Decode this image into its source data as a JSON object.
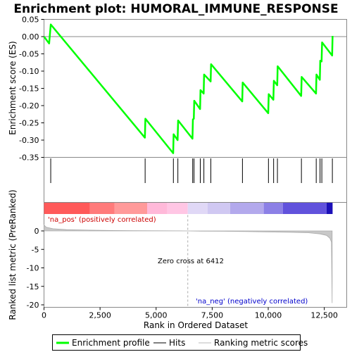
{
  "chart_data": {
    "type": "line",
    "title": "Enrichment plot: HUMORAL_IMMUNE_RESPONSE",
    "es_panel": {
      "ylabel": "Enrichment score (ES)",
      "ylim": [
        -0.35,
        0.05
      ],
      "yticks": [
        "0.05",
        "0.00",
        "-0.05",
        "-0.10",
        "-0.15",
        "-0.20",
        "-0.25",
        "-0.30",
        "-0.35"
      ],
      "ytick_values": [
        0.05,
        0.0,
        -0.05,
        -0.1,
        -0.15,
        -0.2,
        -0.25,
        -0.3,
        -0.35
      ],
      "series_color": "#00ff00",
      "points": [
        [
          0,
          0.0
        ],
        [
          230,
          -0.02
        ],
        [
          300,
          0.035
        ],
        [
          4500,
          -0.293
        ],
        [
          4520,
          -0.238
        ],
        [
          5760,
          -0.338
        ],
        [
          5780,
          -0.283
        ],
        [
          5960,
          -0.3
        ],
        [
          5980,
          -0.243
        ],
        [
          6620,
          -0.296
        ],
        [
          6640,
          -0.24
        ],
        [
          6680,
          -0.238
        ],
        [
          6700,
          -0.186
        ],
        [
          6960,
          -0.21
        ],
        [
          6980,
          -0.155
        ],
        [
          7120,
          -0.165
        ],
        [
          7140,
          -0.11
        ],
        [
          7430,
          -0.13
        ],
        [
          7450,
          -0.08
        ],
        [
          8840,
          -0.188
        ],
        [
          8860,
          -0.133
        ],
        [
          10000,
          -0.222
        ],
        [
          10020,
          -0.167
        ],
        [
          10230,
          -0.183
        ],
        [
          10250,
          -0.128
        ],
        [
          10400,
          -0.141
        ],
        [
          10420,
          -0.086
        ],
        [
          11470,
          -0.172
        ],
        [
          11490,
          -0.117
        ],
        [
          12130,
          -0.165
        ],
        [
          12150,
          -0.11
        ],
        [
          12300,
          -0.125
        ],
        [
          12320,
          -0.07
        ],
        [
          12380,
          -0.072
        ],
        [
          12400,
          -0.017
        ],
        [
          12850,
          -0.055
        ],
        [
          12870,
          0.002
        ]
      ]
    },
    "hits": [
      300,
      4510,
      5770,
      5970,
      6630,
      6690,
      6970,
      7130,
      7440,
      8850,
      10010,
      10240,
      10410,
      11480,
      12140,
      12310,
      12390,
      12860
    ],
    "gradient_bar": {
      "segments": [
        {
          "from": 0,
          "to": 2050,
          "color": "#ff5a5a"
        },
        {
          "from": 2050,
          "to": 3150,
          "color": "#ff7b7b"
        },
        {
          "from": 3150,
          "to": 4600,
          "color": "#ff9a9a"
        },
        {
          "from": 4600,
          "to": 5500,
          "color": "#ffb9d9"
        },
        {
          "from": 5500,
          "to": 6412,
          "color": "#ffc6e4"
        },
        {
          "from": 6412,
          "to": 7300,
          "color": "#e0d8f6"
        },
        {
          "from": 7300,
          "to": 8300,
          "color": "#d0c8f2"
        },
        {
          "from": 8300,
          "to": 9800,
          "color": "#b3a9ec"
        },
        {
          "from": 9800,
          "to": 10650,
          "color": "#8c80e6"
        },
        {
          "from": 10650,
          "to": 12600,
          "color": "#6152dc"
        },
        {
          "from": 12600,
          "to": 12870,
          "color": "#1c10b8"
        }
      ]
    },
    "metric_panel": {
      "ylabel": "Ranked list metric (PreRanked)",
      "xlabel": "Rank in Ordered Dataset",
      "ylim": [
        -20,
        0
      ],
      "yticks": [
        "0",
        "-5",
        "-10",
        "-15",
        "-20"
      ],
      "ytick_values": [
        0,
        -5,
        -10,
        -15,
        -20
      ],
      "metric_points": [
        [
          0,
          1.6
        ],
        [
          100,
          1.0
        ],
        [
          400,
          0.6
        ],
        [
          1000,
          0.35
        ],
        [
          2000,
          0.2
        ],
        [
          3000,
          0.12
        ],
        [
          4000,
          0.08
        ],
        [
          5000,
          0.04
        ],
        [
          6000,
          0.01
        ],
        [
          6412,
          0.0
        ],
        [
          7000,
          -0.05
        ],
        [
          8000,
          -0.1
        ],
        [
          9000,
          -0.18
        ],
        [
          10000,
          -0.28
        ],
        [
          11000,
          -0.38
        ],
        [
          11800,
          -0.5
        ],
        [
          12300,
          -0.8
        ],
        [
          12600,
          -1.2
        ],
        [
          12750,
          -2.0
        ],
        [
          12820,
          -3.0
        ],
        [
          12850,
          -19.5
        ]
      ],
      "zero_cross": 6412,
      "zero_cross_label": "Zero cross at 6412",
      "pos_label": "'na_pos' (positively correlated)",
      "neg_label": "'na_neg' (negatively correlated)"
    },
    "xlim": [
      0,
      13500
    ],
    "xticks": [
      "0",
      "2,500",
      "5,000",
      "7,500",
      "10,000",
      "12,500"
    ],
    "xtick_values": [
      0,
      2500,
      5000,
      7500,
      10000,
      12500
    ],
    "legend": {
      "placement": "bottom",
      "entries": [
        {
          "label": "Enrichment profile",
          "color": "#00ff00",
          "style": "thick"
        },
        {
          "label": "Hits",
          "color": "#000000",
          "style": "line"
        },
        {
          "label": "Ranking metric scores",
          "color": "#bbbbbb",
          "style": "line"
        }
      ]
    }
  }
}
